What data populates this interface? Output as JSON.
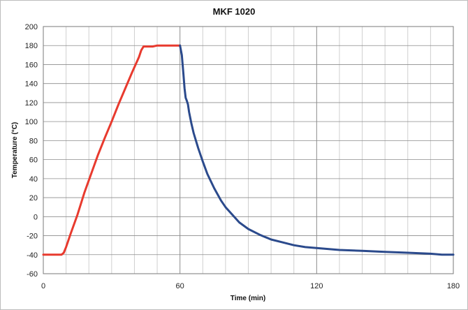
{
  "chart_data": {
    "type": "line",
    "title": "MKF 1020",
    "xlabel": "Time (min)",
    "ylabel": "Temperature (°C)",
    "xlim": [
      0,
      180
    ],
    "ylim": [
      -60,
      200
    ],
    "x_ticks": [
      0,
      60,
      120,
      180
    ],
    "y_ticks": [
      -60,
      -40,
      -20,
      0,
      20,
      40,
      60,
      80,
      100,
      120,
      140,
      160,
      180,
      200
    ],
    "x_minor_step": 10,
    "grid": true,
    "legend": "none",
    "colors": {
      "heating": "#e83a2e",
      "cooling": "#2b4a8c",
      "grid_major": "#8c8c8c",
      "grid_minor": "#cfcfcf"
    },
    "series": [
      {
        "x": [
          0,
          8,
          9,
          10,
          12,
          15,
          18,
          21,
          24,
          27,
          30,
          33,
          36,
          39,
          42,
          43,
          44,
          45,
          48,
          50,
          52,
          55,
          58,
          60
        ],
        "y": [
          -40,
          -40,
          -38,
          -32,
          -18,
          2,
          25,
          45,
          65,
          83,
          100,
          118,
          135,
          152,
          168,
          175,
          179,
          179,
          179,
          180,
          180,
          180,
          180,
          180
        ]
      },
      {
        "x": [
          60,
          60.8,
          61.5,
          62,
          62.5,
          63,
          63.5,
          64,
          65,
          66,
          67,
          68,
          70,
          72,
          75,
          78,
          80,
          83,
          86,
          90,
          95,
          100,
          105,
          110,
          115,
          120,
          130,
          140,
          150,
          160,
          170,
          175,
          180
        ],
        "y": [
          180,
          170,
          150,
          135,
          125,
          122,
          118,
          110,
          98,
          88,
          80,
          72,
          58,
          45,
          30,
          17,
          10,
          2,
          -6,
          -13,
          -19,
          -24,
          -27,
          -30,
          -32,
          -33,
          -35,
          -36,
          -37,
          -38,
          -39,
          -40,
          -40
        ]
      }
    ]
  }
}
